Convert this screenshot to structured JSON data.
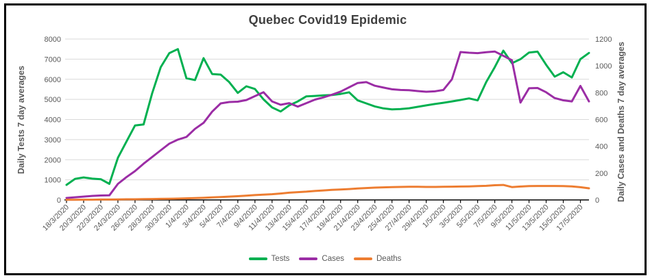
{
  "frame": {
    "border_color": "#000000",
    "background": "#ffffff"
  },
  "chart_data": {
    "type": "line",
    "title": "Quebec Covid19 Epidemic",
    "grid": true,
    "legend_position": "bottom",
    "y_left": {
      "label": "Daily Tests 7 day averages",
      "min": 0,
      "max": 8000,
      "step": 1000,
      "tick_labels": [
        "0",
        "1000",
        "2000",
        "3000",
        "4000",
        "5000",
        "6000",
        "7000",
        "8000"
      ]
    },
    "y_right": {
      "label": "Daily Cases and Deaths 7 day averages",
      "min": 0,
      "max": 1200,
      "step": 200,
      "tick_labels": [
        "0",
        "200",
        "400",
        "600",
        "800",
        "1000",
        "1200"
      ]
    },
    "x": {
      "tick_labels": [
        "18/3/2020",
        "20/3/2020",
        "22/3/2020",
        "24/3/2020",
        "26/3/2020",
        "28/3/2020",
        "30/3/2020",
        "1/4/2020",
        "3/4/2020",
        "5/4/2020",
        "7/4/2020",
        "9/4/2020",
        "11/4/2020",
        "13/4/2020",
        "15/4/2020",
        "17/4/2020",
        "19/4/2020",
        "21/4/2020",
        "23/4/2020",
        "25/4/2020",
        "27/4/2020",
        "29/4/2020",
        "1/5/2020",
        "3/5/2020",
        "5/5/2020",
        "7/5/2020",
        "9/5/2020",
        "11/5/2020",
        "13/5/2020",
        "15/5/2020",
        "17/5/2020"
      ],
      "points_per_label": 2,
      "note": "daily points, one label every 2 days"
    },
    "series": [
      {
        "name": "Tests",
        "axis": "left",
        "color": "#00B050",
        "values": [
          750,
          1050,
          1120,
          1060,
          1030,
          800,
          2100,
          2900,
          3700,
          3750,
          5300,
          6600,
          7300,
          7500,
          6050,
          5960,
          7050,
          6260,
          6230,
          5860,
          5320,
          5650,
          5520,
          5000,
          4600,
          4400,
          4700,
          4900,
          5150,
          5170,
          5200,
          5220,
          5270,
          5350,
          4950,
          4800,
          4650,
          4550,
          4500,
          4520,
          4560,
          4630,
          4700,
          4770,
          4830,
          4900,
          4970,
          5050,
          4950,
          5860,
          6600,
          7420,
          6800,
          7000,
          7330,
          7375,
          6720,
          6130,
          6350,
          6090,
          7000,
          7310
        ]
      },
      {
        "name": "Cases",
        "axis": "right",
        "color": "#9B2DA5",
        "values": [
          15,
          20,
          25,
          30,
          33,
          34,
          120,
          170,
          215,
          270,
          320,
          370,
          420,
          450,
          470,
          530,
          575,
          658,
          720,
          730,
          733,
          745,
          774,
          803,
          735,
          710,
          722,
          696,
          722,
          748,
          765,
          785,
          808,
          840,
          872,
          879,
          852,
          838,
          825,
          820,
          818,
          812,
          807,
          810,
          820,
          900,
          1103,
          1098,
          1095,
          1102,
          1107,
          1075,
          1042,
          726,
          833,
          835,
          803,
          760,
          743,
          735,
          850,
          735
        ]
      },
      {
        "name": "Deaths",
        "axis": "right",
        "color": "#ED7D31",
        "values": [
          1,
          1,
          2,
          2,
          3,
          3,
          4,
          5,
          5,
          6,
          7,
          8,
          9,
          10,
          12,
          14,
          16,
          19,
          22,
          25,
          28,
          32,
          36,
          40,
          43,
          48,
          54,
          58,
          62,
          67,
          71,
          75,
          78,
          81,
          86,
          89,
          92,
          94,
          96,
          97,
          98,
          98,
          97,
          97,
          98,
          99,
          100,
          101,
          103,
          105,
          110,
          112,
          96,
          100,
          103,
          104,
          104,
          104,
          103,
          101,
          95,
          87
        ]
      }
    ],
    "style": {
      "gridline_color": "#D9D9D9",
      "axis_line_color": "#000000",
      "tick_text_color": "#595959",
      "title_color": "#404040"
    }
  }
}
